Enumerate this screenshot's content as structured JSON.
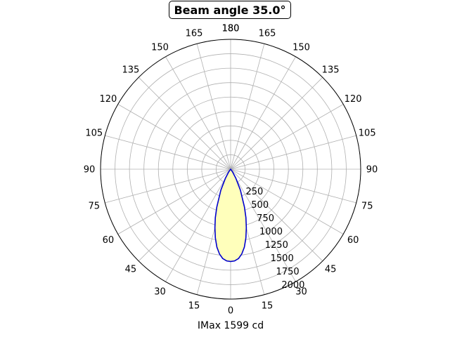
{
  "chart_data": {
    "type": "polar-line",
    "title": "Beam angle 35.0°",
    "xlabel": "IMax 1599 cd",
    "angle_ticks": [
      {
        "deg": -180,
        "label": "180"
      },
      {
        "deg": -165,
        "label": "165"
      },
      {
        "deg": -150,
        "label": "150"
      },
      {
        "deg": -135,
        "label": "135"
      },
      {
        "deg": -120,
        "label": "120"
      },
      {
        "deg": -105,
        "label": "105"
      },
      {
        "deg": -90,
        "label": "90"
      },
      {
        "deg": -75,
        "label": "75"
      },
      {
        "deg": -60,
        "label": "60"
      },
      {
        "deg": -45,
        "label": "45"
      },
      {
        "deg": -30,
        "label": "30"
      },
      {
        "deg": -15,
        "label": "15"
      },
      {
        "deg": 0,
        "label": "0"
      },
      {
        "deg": 15,
        "label": "15"
      },
      {
        "deg": 30,
        "label": "30"
      },
      {
        "deg": 45,
        "label": "45"
      },
      {
        "deg": 60,
        "label": "60"
      },
      {
        "deg": 75,
        "label": "75"
      },
      {
        "deg": 90,
        "label": "90"
      },
      {
        "deg": 105,
        "label": "105"
      },
      {
        "deg": 120,
        "label": "120"
      },
      {
        "deg": 135,
        "label": "135"
      },
      {
        "deg": 150,
        "label": "150"
      },
      {
        "deg": 165,
        "label": "165"
      },
      {
        "deg": 180,
        "label": "180"
      }
    ],
    "radial_ticks": [
      250,
      500,
      750,
      1000,
      1250,
      1500,
      1750,
      2000
    ],
    "rmax": 2250,
    "grid": true,
    "series": [
      {
        "angles": [
          -90,
          -60,
          -45,
          -35,
          -30,
          -25,
          -20,
          -17.5,
          -15,
          -12.5,
          -10,
          -7.5,
          -5,
          -2.5,
          0,
          2.5,
          5,
          7.5,
          10,
          12.5,
          15,
          17.5,
          20,
          25,
          30,
          35,
          45,
          60,
          90
        ],
        "values": [
          0,
          0,
          5,
          60,
          180,
          400,
          700,
          880,
          1050,
          1220,
          1370,
          1480,
          1555,
          1590,
          1599,
          1590,
          1555,
          1480,
          1370,
          1220,
          1050,
          880,
          700,
          400,
          180,
          60,
          5,
          0,
          0
        ],
        "color": "#0000cc",
        "fill": "#ffffbb"
      }
    ]
  }
}
